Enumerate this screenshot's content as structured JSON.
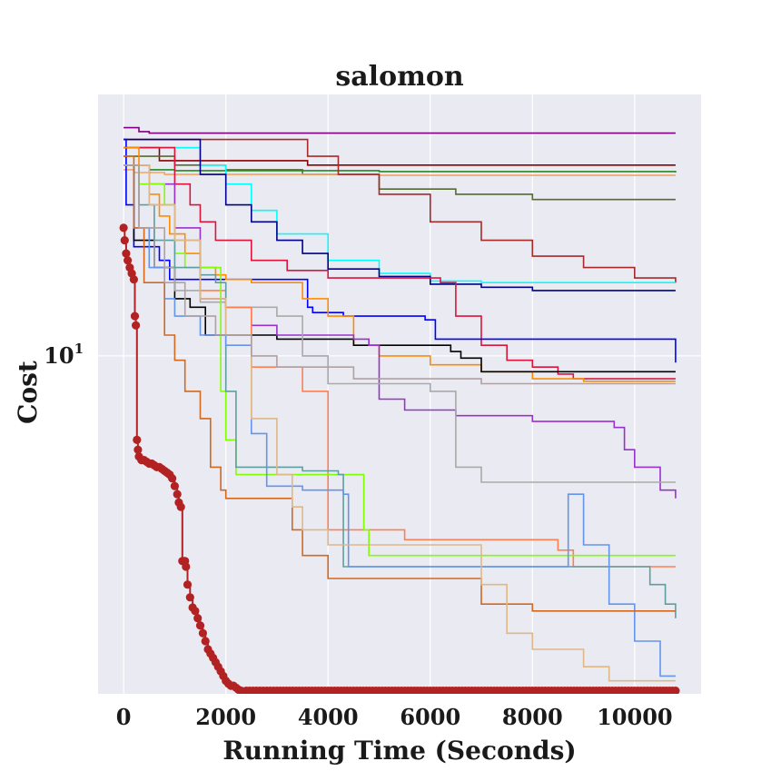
{
  "chart_data": {
    "type": "line",
    "title": "salomon",
    "xlabel": "Running Time (Seconds)",
    "ylabel": "Cost",
    "xscale": "linear",
    "yscale": "log",
    "xlim": [
      -500,
      11300
    ],
    "ylim": [
      2.12,
      33.2
    ],
    "xticks": [
      0,
      2000,
      4000,
      6000,
      8000,
      10000
    ],
    "yticks": [
      {
        "value": 10,
        "base": "10",
        "exp": "1"
      }
    ],
    "grid": true,
    "background": "#eaeaf2",
    "legend": "none",
    "series": [
      {
        "color": "#b22222",
        "marker": "o",
        "x": [
          0,
          20,
          50,
          80,
          120,
          160,
          200,
          220,
          240,
          260,
          280,
          300,
          350,
          400,
          450,
          500,
          550,
          600,
          650,
          700,
          750,
          800,
          850,
          900,
          950,
          1000,
          1050,
          1080,
          1120,
          1150,
          1180,
          1200,
          1220,
          1250,
          1300,
          1350,
          1400,
          1450,
          1500,
          1550,
          1600,
          1650,
          1700,
          1750,
          1800,
          1850,
          1900,
          1950,
          2000,
          2050,
          2100,
          2150,
          2200,
          2250,
          2300,
          2400,
          2600,
          2800,
          3000,
          3500,
          4000,
          4500,
          5000,
          5500,
          6000,
          6500,
          7000,
          7500,
          8000,
          8500,
          9000,
          9500,
          10000,
          10500,
          10800
        ],
        "y": [
          18,
          17,
          16,
          15.5,
          15,
          14.6,
          14.2,
          12,
          11.5,
          6.8,
          6.5,
          6.3,
          6.2,
          6.2,
          6.15,
          6.1,
          6.1,
          6.05,
          6.0,
          6.0,
          5.95,
          5.9,
          5.85,
          5.8,
          5.7,
          5.5,
          5.3,
          5.1,
          5.0,
          3.9,
          3.9,
          3.9,
          3.8,
          3.5,
          3.3,
          3.15,
          3.1,
          3.0,
          2.9,
          2.8,
          2.7,
          2.6,
          2.55,
          2.5,
          2.45,
          2.4,
          2.35,
          2.3,
          2.25,
          2.22,
          2.2,
          2.2,
          2.18,
          2.16,
          2.15,
          2.15,
          2.15,
          2.15,
          2.15,
          2.15,
          2.15,
          2.15,
          2.15,
          2.15,
          2.15,
          2.15,
          2.15,
          2.15,
          2.15,
          2.15,
          2.15,
          2.15,
          2.15,
          2.15,
          2.15
        ]
      },
      {
        "color": "#800080",
        "x": [
          0,
          300,
          500,
          10800
        ],
        "y": [
          28.5,
          28.0,
          27.8,
          27.8
        ]
      },
      {
        "color": "#8b0000",
        "x": [
          0,
          700,
          3600,
          10800
        ],
        "y": [
          26,
          24.5,
          24,
          24
        ]
      },
      {
        "color": "#556b2f",
        "x": [
          0,
          1000,
          2000,
          3500,
          5000,
          6500,
          8000,
          10800
        ],
        "y": [
          25,
          24,
          23.5,
          23,
          21.5,
          21,
          20.5,
          20.5
        ]
      },
      {
        "color": "#228b22",
        "x": [
          0,
          500,
          1000,
          5000,
          10800
        ],
        "y": [
          24,
          23.5,
          23.4,
          23.3,
          23.2
        ]
      },
      {
        "color": "#f4a460",
        "x": [
          0,
          200,
          800,
          5000,
          10800
        ],
        "y": [
          23.5,
          23.2,
          23.0,
          22.9,
          22.9
        ]
      },
      {
        "color": "#a52a2a",
        "x": [
          0,
          3600,
          4200,
          5000,
          6000,
          7000,
          8000,
          9000,
          10000,
          10800
        ],
        "y": [
          27,
          25,
          23,
          21,
          18.5,
          17,
          15.8,
          15,
          14.3,
          14
        ]
      },
      {
        "color": "#00ffff",
        "x": [
          0,
          1500,
          2000,
          2500,
          3000,
          4000,
          5000,
          6000,
          7000,
          8000,
          9000,
          10000,
          10800
        ],
        "y": [
          26,
          24,
          22,
          19.5,
          17.5,
          15.5,
          14.6,
          14.1,
          14.0,
          14.0,
          14.0,
          14.0,
          14.0
        ]
      },
      {
        "color": "#00008b",
        "x": [
          0,
          1500,
          2000,
          2500,
          3000,
          3500,
          4000,
          5000,
          6000,
          7000,
          8000,
          10800
        ],
        "y": [
          27,
          23,
          20,
          18.5,
          17,
          16,
          14.9,
          14.4,
          13.9,
          13.7,
          13.5,
          13.5
        ]
      },
      {
        "color": "#dc143c",
        "x": [
          0,
          1000,
          1300,
          1500,
          1800,
          2500,
          3200,
          4000,
          5000,
          5800,
          6200,
          6500,
          7000,
          7500,
          8000,
          8500,
          8800,
          9500,
          10800
        ],
        "y": [
          26,
          22,
          20,
          18.5,
          17,
          15.5,
          14.8,
          14.3,
          14.3,
          14.3,
          14.0,
          12,
          10.5,
          9.8,
          9.5,
          9.2,
          9.0,
          9.0,
          9.0
        ]
      },
      {
        "color": "#0000ff",
        "x": [
          0,
          50,
          200,
          700,
          900,
          1800,
          3500,
          3600,
          3700,
          4300,
          5900,
          6100,
          10000,
          10700,
          10800
        ],
        "y": [
          27,
          20,
          16.5,
          15.5,
          14.2,
          14.2,
          14.2,
          12.5,
          12.2,
          12.0,
          11.8,
          10.8,
          10.8,
          10.8,
          9.7
        ]
      },
      {
        "color": "#ff8c00",
        "x": [
          0,
          300,
          500,
          700,
          900,
          1200,
          1500,
          1800,
          2000,
          2500,
          3500,
          4000,
          4500,
          5000,
          6000,
          7000,
          8000,
          9000,
          10800
        ],
        "y": [
          26,
          24,
          21,
          19,
          17.5,
          16,
          15,
          14.5,
          14.2,
          14.0,
          13.0,
          12.0,
          10.5,
          10.0,
          9.6,
          9.3,
          9.0,
          8.9,
          8.9
        ]
      },
      {
        "color": "#000000",
        "x": [
          0,
          200,
          600,
          1000,
          1300,
          1600,
          3000,
          4500,
          6200,
          6400,
          6600,
          7000,
          10800
        ],
        "y": [
          24,
          17,
          15,
          13,
          12.5,
          11,
          10.8,
          10.5,
          10.5,
          10.2,
          9.9,
          9.3,
          9.3
        ]
      },
      {
        "color": "#9932cc",
        "x": [
          0,
          500,
          1000,
          1500,
          2000,
          2500,
          3000,
          4500,
          4800,
          5000,
          5500,
          6500,
          8000,
          9600,
          9800,
          10000,
          10500,
          10800
        ],
        "y": [
          24,
          22,
          18,
          13,
          12.5,
          11.5,
          11,
          10.8,
          10.5,
          8.2,
          7.8,
          7.6,
          7.4,
          7.2,
          6.5,
          6.0,
          5.4,
          5.2
        ]
      },
      {
        "color": "#a9a9a9",
        "x": [
          0,
          300,
          600,
          1000,
          1500,
          2000,
          2800,
          3000,
          3500,
          4000,
          5000,
          6000,
          6500,
          7000,
          8000,
          10000,
          10800
        ],
        "y": [
          24,
          18,
          15,
          13.5,
          12.8,
          12.5,
          12.5,
          12,
          10,
          8.8,
          8.8,
          8.5,
          6.0,
          5.6,
          5.6,
          5.6,
          5.6
        ]
      },
      {
        "color": "#ff7f50",
        "x": [
          0,
          500,
          1000,
          1500,
          2000,
          2500,
          3000,
          3500,
          4000,
          5000,
          5500,
          6000,
          7000,
          8500,
          8800,
          10800
        ],
        "y": [
          24,
          20,
          17,
          13.5,
          12.5,
          9.5,
          9.5,
          8.5,
          4.5,
          4.5,
          4.3,
          4.3,
          4.3,
          4.1,
          3.8,
          3.8
        ]
      },
      {
        "color": "#7fff00",
        "x": [
          0,
          300,
          800,
          1000,
          1200,
          1800,
          1900,
          2000,
          2200,
          4500,
          4700,
          4800,
          5000,
          6000,
          8000,
          10800
        ],
        "y": [
          24,
          22,
          20,
          16,
          15,
          15,
          8.5,
          6.8,
          5.8,
          5.8,
          4.5,
          4.0,
          4.0,
          4.0,
          4.0,
          4.0
        ]
      },
      {
        "color": "#5f9ea0",
        "x": [
          0,
          300,
          600,
          1000,
          1500,
          1800,
          2000,
          2200,
          3000,
          3500,
          4200,
          4300,
          5000,
          6000,
          7000,
          8500,
          10000,
          10300,
          10600,
          10800
        ],
        "y": [
          24,
          20,
          17,
          15,
          14.5,
          14,
          8.5,
          6.0,
          6.0,
          5.9,
          5.8,
          3.8,
          3.8,
          3.8,
          3.8,
          3.8,
          3.8,
          3.5,
          3.2,
          3.0
        ]
      },
      {
        "color": "#6495ed",
        "x": [
          0,
          200,
          500,
          800,
          1000,
          1500,
          2000,
          2500,
          2800,
          3500,
          4300,
          4400,
          5000,
          6000,
          7000,
          8700,
          9000,
          9500,
          10000,
          10500,
          10800
        ],
        "y": [
          24,
          18,
          15,
          13,
          12,
          11,
          10.5,
          7,
          5.5,
          5.4,
          5.3,
          3.8,
          3.8,
          3.8,
          3.8,
          5.3,
          4.2,
          3.2,
          2.7,
          2.3,
          2.3
        ]
      },
      {
        "color": "#d2691e",
        "x": [
          0,
          200,
          400,
          800,
          1000,
          1200,
          1500,
          1700,
          1900,
          2000,
          3000,
          3300,
          3500,
          4000,
          5000,
          6000,
          6500,
          7000,
          8000,
          10000,
          10800
        ],
        "y": [
          25,
          18,
          14,
          11,
          9.8,
          8.5,
          7.5,
          6.0,
          5.4,
          5.2,
          5.2,
          4.5,
          4.0,
          3.6,
          3.6,
          3.6,
          3.6,
          3.2,
          3.1,
          3.1,
          3.1
        ]
      },
      {
        "color": "#deb887",
        "x": [
          0,
          500,
          1000,
          1500,
          2000,
          2500,
          3000,
          3300,
          3500,
          4000,
          5000,
          6000,
          6500,
          7000,
          7500,
          8000,
          8500,
          9000,
          9500,
          10800
        ],
        "y": [
          24,
          20,
          17,
          13,
          11,
          7.5,
          5.8,
          5.0,
          4.5,
          4.2,
          4.2,
          4.2,
          4.2,
          3.5,
          2.8,
          2.6,
          2.6,
          2.4,
          2.25,
          2.25
        ]
      },
      {
        "color": "#b0a0a0",
        "x": [
          0,
          300,
          800,
          1200,
          1800,
          2500,
          3000,
          4500,
          6000,
          7000,
          8000,
          10800
        ],
        "y": [
          24,
          18,
          14,
          12,
          11,
          10,
          9.5,
          9.0,
          9.0,
          8.8,
          8.8,
          8.8
        ]
      }
    ]
  }
}
